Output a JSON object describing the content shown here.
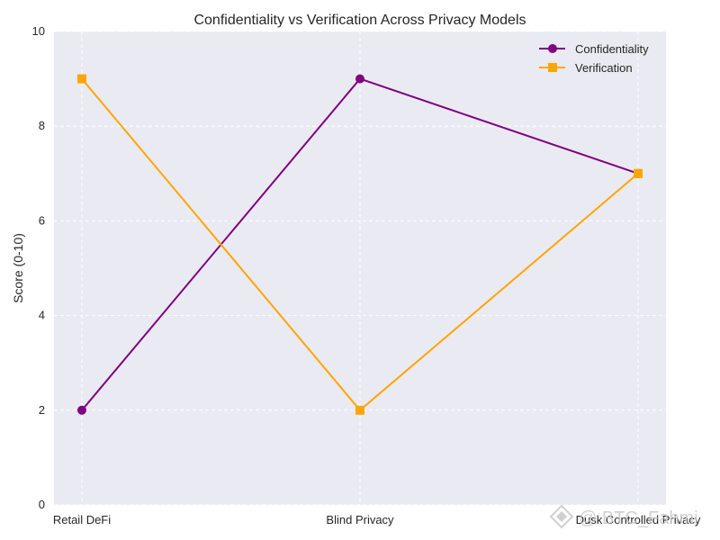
{
  "chart_data": {
    "type": "line",
    "title": "Confidentiality vs Verification Across Privacy Models",
    "xlabel": "",
    "ylabel": "Score (0-10)",
    "categories": [
      "Retail DeFi",
      "Blind Privacy",
      "Dusk Controlled Privacy"
    ],
    "ylim": [
      0,
      10
    ],
    "yticks": [
      0,
      2,
      4,
      6,
      8,
      10
    ],
    "grid": true,
    "legend_position": "top-right",
    "series": [
      {
        "name": "Confidentiality",
        "values": [
          2,
          9,
          7
        ],
        "color": "#800080",
        "marker": "circle"
      },
      {
        "name": "Verification",
        "values": [
          9,
          2,
          7
        ],
        "color": "#FFA500",
        "marker": "square"
      }
    ]
  },
  "colors": {
    "plot_background": "#EAEAF2",
    "grid": "#ffffff",
    "text": "#262626"
  },
  "watermark": {
    "text": "@ BTC_Fahmi",
    "icon": "binance-logo-icon"
  }
}
